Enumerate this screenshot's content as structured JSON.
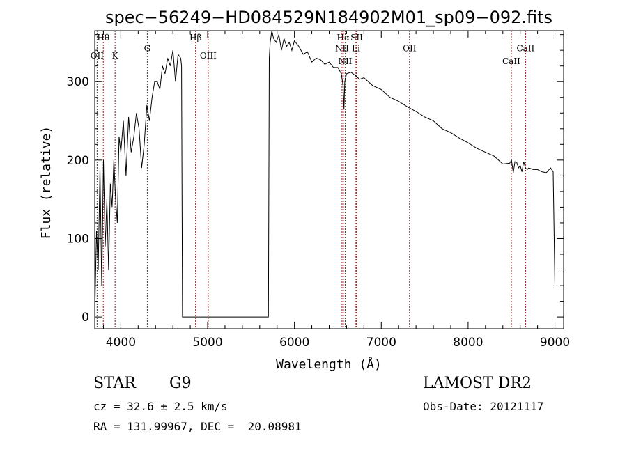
{
  "chart_data": {
    "type": "line",
    "title": "spec−56249−HD084529N184902M01_sp09−092.fits",
    "xlabel": "Wavelength (Å)",
    "ylabel": "Flux (relative)",
    "xlim": [
      3700,
      9100
    ],
    "ylim": [
      -15,
      365
    ],
    "x_ticks": [
      4000,
      5000,
      6000,
      7000,
      8000,
      9000
    ],
    "y_ticks": [
      0,
      100,
      200,
      300
    ],
    "line_color": "#000000",
    "marker_color": "#8b1a1a",
    "grid": false,
    "series": [
      {
        "x": [
          3700,
          3720,
          3740,
          3760,
          3780,
          3800,
          3820,
          3840,
          3860,
          3880,
          3900,
          3920,
          3940,
          3960,
          3980,
          4000,
          4030,
          4060,
          4090,
          4120,
          4150,
          4180,
          4210,
          4240,
          4270,
          4300,
          4330,
          4360,
          4390,
          4420,
          4450,
          4480,
          4510,
          4540,
          4570,
          4600,
          4630,
          4660,
          4690,
          4700,
          4710,
          5700,
          5710,
          5720,
          5740,
          5760,
          5790,
          5820,
          5850,
          5880,
          5910,
          5940,
          5970,
          6000,
          6050,
          6100,
          6150,
          6200,
          6250,
          6300,
          6350,
          6400,
          6450,
          6500,
          6540,
          6560,
          6570,
          6580,
          6600,
          6650,
          6700,
          6750,
          6800,
          6900,
          7000,
          7100,
          7200,
          7300,
          7400,
          7500,
          7600,
          7700,
          7800,
          7900,
          8000,
          8100,
          8200,
          8300,
          8400,
          8480,
          8500,
          8520,
          8540,
          8560,
          8580,
          8600,
          8620,
          8640,
          8660,
          8680,
          8700,
          8750,
          8800,
          8850,
          8900,
          8950,
          8980,
          9000
        ],
        "values": [
          0,
          110,
          60,
          190,
          40,
          200,
          90,
          150,
          60,
          170,
          140,
          200,
          150,
          120,
          230,
          210,
          250,
          180,
          255,
          210,
          230,
          260,
          240,
          190,
          220,
          270,
          250,
          280,
          300,
          300,
          290,
          320,
          310,
          330,
          320,
          340,
          300,
          335,
          330,
          320,
          0,
          0,
          330,
          350,
          365,
          355,
          350,
          360,
          340,
          355,
          345,
          350,
          340,
          352,
          345,
          335,
          338,
          325,
          330,
          328,
          322,
          325,
          318,
          318,
          310,
          295,
          265,
          300,
          310,
          312,
          308,
          303,
          305,
          295,
          290,
          280,
          275,
          268,
          262,
          255,
          250,
          240,
          235,
          228,
          222,
          215,
          210,
          205,
          195,
          196,
          200,
          184,
          198,
          197,
          190,
          193,
          185,
          198,
          190,
          188,
          190,
          188,
          188,
          185,
          184,
          190,
          185,
          40
        ]
      }
    ],
    "annotations": [
      {
        "label": "Hθ",
        "x": 3798,
        "row": 1
      },
      {
        "label": "OII",
        "x": 3727,
        "row": 2
      },
      {
        "label": "K",
        "x": 3934,
        "row": 2
      },
      {
        "label": "G",
        "x": 4305,
        "row": 1.6
      },
      {
        "label": "Hβ",
        "x": 4861,
        "row": 1
      },
      {
        "label": "OIII",
        "x": 5007,
        "row": 2
      },
      {
        "label": "Hα",
        "x": 6563,
        "row": 1
      },
      {
        "label": "SII",
        "x": 6717,
        "row": 1
      },
      {
        "label": "NII",
        "x": 6548,
        "row": 1.6
      },
      {
        "label": "Li",
        "x": 6708,
        "row": 1.6
      },
      {
        "label": "NII",
        "x": 6584,
        "row": 2.3
      },
      {
        "label": "OII",
        "x": 7325,
        "row": 1.6
      },
      {
        "label": "CaII",
        "x": 8498,
        "row": 2.3
      },
      {
        "label": "CaII",
        "x": 8662,
        "row": 1.6
      }
    ]
  },
  "info": {
    "class_label": "STAR",
    "subclass": "G9",
    "survey": "LAMOST DR2",
    "redshift_line": "cz = 32.6 ± 2.5 km/s",
    "obs_date": "Obs-Date: 20121117",
    "coords": "RA = 131.99967, DEC =  20.08981"
  }
}
